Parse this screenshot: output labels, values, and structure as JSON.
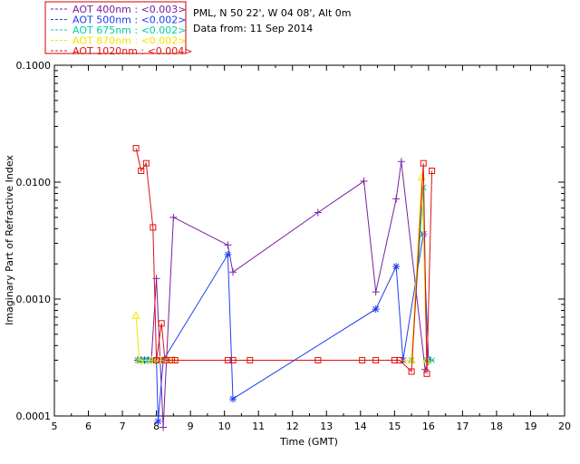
{
  "header": {
    "site": "PML, N 50 22', W 04 08', Alt 0m",
    "date": "Data from: 11 Sep 2014"
  },
  "chart_data": {
    "type": "line",
    "title": "",
    "xlabel": "Time (GMT)",
    "ylabel": "Imaginary Part of Refractive Index",
    "xlim": [
      5,
      20
    ],
    "ylim": [
      0.0001,
      0.1
    ],
    "yscale": "log",
    "x_ticks": [
      5,
      6,
      7,
      8,
      9,
      10,
      11,
      12,
      13,
      14,
      15,
      16,
      17,
      18,
      19,
      20
    ],
    "x_tick_labels": [
      "5",
      "6",
      "7",
      "8",
      "9",
      "10",
      "11",
      "12",
      "13",
      "14",
      "15",
      "16",
      "17",
      "18",
      "19",
      "20"
    ],
    "y_ticks": [
      0.0001,
      0.001,
      0.01,
      0.1
    ],
    "y_tick_labels": [
      "0.0001",
      "0.0010",
      "0.0100",
      "0.1000"
    ],
    "legend_position": "top-left (outside plot)",
    "series": [
      {
        "name": "AOT  400nm : <0.003>",
        "color": "#7a1fa0",
        "marker": "plus",
        "points": [
          [
            7.45,
            0.0003
          ],
          [
            7.55,
            0.0003
          ],
          [
            7.65,
            0.0003
          ],
          [
            7.75,
            0.0003
          ],
          [
            7.85,
            0.0003
          ],
          [
            8.0,
            0.0015
          ],
          [
            8.2,
            8e-05
          ],
          [
            8.5,
            0.005
          ],
          [
            10.1,
            0.0029
          ],
          [
            10.25,
            0.0017
          ],
          [
            12.75,
            0.0055
          ],
          [
            14.1,
            0.0102
          ],
          [
            14.45,
            0.00115
          ],
          [
            15.05,
            0.0072
          ],
          [
            15.2,
            0.015
          ],
          [
            15.9,
            0.00025
          ],
          [
            16.05,
            0.0003
          ]
        ]
      },
      {
        "name": "AOT  500nm : <0.002>",
        "color": "#1f3ff0",
        "marker": "asterisk",
        "points": [
          [
            7.45,
            0.0003
          ],
          [
            7.55,
            0.0003
          ],
          [
            7.65,
            0.0003
          ],
          [
            7.75,
            0.0003
          ],
          [
            7.85,
            0.0003
          ],
          [
            8.0,
            0.0003
          ],
          [
            8.05,
            9e-05
          ],
          [
            8.2,
            0.0003
          ],
          [
            10.1,
            0.0024
          ],
          [
            10.25,
            0.00014
          ],
          [
            14.45,
            0.00082
          ],
          [
            15.05,
            0.0019
          ],
          [
            15.25,
            0.0003
          ],
          [
            15.85,
            0.0036
          ],
          [
            16.0,
            0.0003
          ]
        ]
      },
      {
        "name": "AOT  675nm : <0.002>",
        "color": "#00d0a0",
        "marker": "x",
        "points": [
          [
            7.45,
            0.0003
          ],
          [
            7.55,
            0.0003
          ],
          [
            7.65,
            0.0003
          ],
          [
            7.75,
            0.0003
          ],
          [
            7.85,
            0.0003
          ],
          [
            15.5,
            0.0003
          ],
          [
            15.85,
            0.009
          ],
          [
            15.95,
            0.0003
          ],
          [
            16.1,
            0.0003
          ]
        ]
      },
      {
        "name": "AOT  870nm : <0.002>",
        "color": "#f5e400",
        "marker": "triangle",
        "points": [
          [
            7.4,
            0.00072
          ],
          [
            7.5,
            0.0003
          ],
          [
            7.85,
            0.0003
          ],
          [
            8.0,
            0.0003
          ],
          [
            8.1,
            0.0003
          ],
          [
            8.2,
            0.0003
          ],
          [
            8.35,
            0.0003
          ],
          [
            8.5,
            0.0003
          ],
          [
            15.5,
            0.0003
          ],
          [
            15.8,
            0.011
          ],
          [
            15.95,
            0.0003
          ]
        ]
      },
      {
        "name": "AOT 1020nm : <0.004>",
        "color": "#e01010",
        "marker": "square",
        "points": [
          [
            7.4,
            0.0195
          ],
          [
            7.55,
            0.0125
          ],
          [
            7.7,
            0.0145
          ],
          [
            7.9,
            0.0041
          ],
          [
            8.0,
            0.0003
          ],
          [
            8.15,
            0.00062
          ],
          [
            8.25,
            0.0003
          ],
          [
            8.45,
            0.0003
          ],
          [
            8.55,
            0.0003
          ],
          [
            10.1,
            0.0003
          ],
          [
            10.25,
            0.0003
          ],
          [
            10.75,
            0.0003
          ],
          [
            12.75,
            0.0003
          ],
          [
            14.05,
            0.0003
          ],
          [
            14.45,
            0.0003
          ],
          [
            15.0,
            0.0003
          ],
          [
            15.15,
            0.0003
          ],
          [
            15.5,
            0.00024
          ],
          [
            15.85,
            0.0145
          ],
          [
            15.95,
            0.00023
          ],
          [
            16.1,
            0.0125
          ]
        ]
      }
    ]
  }
}
